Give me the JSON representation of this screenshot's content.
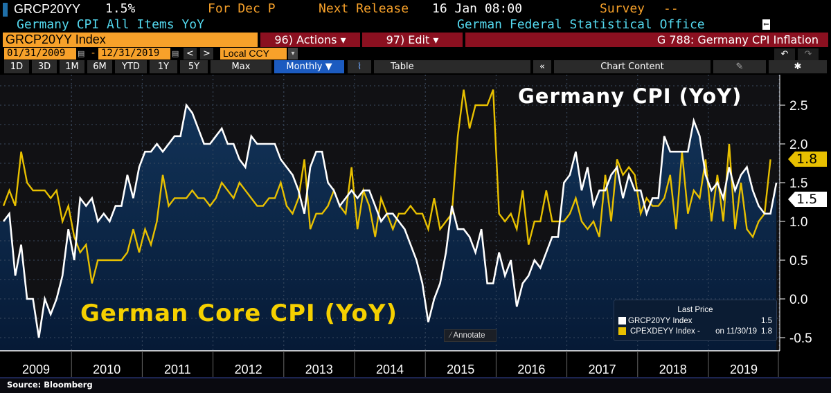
{
  "header": {
    "ticker": "GRCP20YY",
    "value": "1.5%",
    "period": "For Dec P",
    "next_release_label": "Next Release",
    "next_release": "16 Jan 08:00",
    "survey_label": "Survey",
    "survey": "--",
    "description": "Germany CPI All Items YoY",
    "source_org": "German Federal Statistical Office"
  },
  "command": {
    "security": "GRCP20YY Index",
    "actions": "96) Actions ▾",
    "edit": "97) Edit ▾",
    "page": "G 788: Germany CPI Inflation"
  },
  "dates": {
    "start": "01/31/2009",
    "end": "12/31/2019",
    "currency": "Local CCY",
    "prev": "<",
    "next": ">",
    "cal": "▤",
    "dash": "-",
    "dropdown": "▾",
    "undo": "↶",
    "redo": "↷"
  },
  "toolbar": {
    "ranges": [
      "1D",
      "3D",
      "1M",
      "6M",
      "YTD",
      "1Y",
      "5Y",
      "Max"
    ],
    "frequency": "Monthly ▼",
    "table": "Table",
    "collapse": "«",
    "chart_content": "Chart Content",
    "edit_icon": "✎",
    "settings_icon": "✱"
  },
  "annotate": "Annotate",
  "footer": {
    "source": "Source: Bloomberg"
  },
  "colors": {
    "headline": "#ffffff",
    "core": "#e8c000",
    "fill_top": "#123358",
    "fill_bottom": "#061a36",
    "plot_bg": "#111114"
  },
  "chart_data": {
    "type": "line",
    "title": "Germany CPI (YoY)",
    "subtitle": "German Core CPI (YoY)",
    "x_start": "2009-01",
    "frequency": "monthly",
    "xticks": [
      "2009",
      "2010",
      "2011",
      "2012",
      "2013",
      "2014",
      "2015",
      "2016",
      "2017",
      "2018",
      "2019"
    ],
    "ylim": [
      -0.6,
      2.85
    ],
    "yticks": [
      "-0.5",
      "0.0",
      "0.5",
      "1.0",
      "1.5",
      "2.0",
      "2.5"
    ],
    "ytick_values": [
      -0.5,
      0,
      0.5,
      1,
      1.5,
      2,
      2.5
    ],
    "grid": true,
    "legend": {
      "title": "Last Price",
      "position": "bottom-right",
      "entries": [
        {
          "name": "GRCP20YY Index",
          "note": "",
          "last": "1.5"
        },
        {
          "name": "CPEXDEYY Index -",
          "note": "on 11/30/19",
          "last": "1.8"
        }
      ]
    },
    "series": [
      {
        "name": "GRCP20YY Index",
        "last_label": "1.5",
        "values": [
          1.0,
          1.1,
          0.3,
          0.7,
          0.0,
          0.0,
          -0.5,
          0.0,
          -0.2,
          0.0,
          0.3,
          0.9,
          0.5,
          1.3,
          1.2,
          1.3,
          1.0,
          1.1,
          1.0,
          1.2,
          1.2,
          1.6,
          1.3,
          1.7,
          1.9,
          1.9,
          2.0,
          1.9,
          2.0,
          2.1,
          2.1,
          2.5,
          2.4,
          2.2,
          2.0,
          2.0,
          2.1,
          2.2,
          2.0,
          2.0,
          1.8,
          1.7,
          2.1,
          2.0,
          2.0,
          2.0,
          2.0,
          1.8,
          1.7,
          1.6,
          1.4,
          1.1,
          1.7,
          1.9,
          1.9,
          1.5,
          1.4,
          1.2,
          1.3,
          1.4,
          1.3,
          1.4,
          1.4,
          1.2,
          1.0,
          1.1,
          1.1,
          1.0,
          0.9,
          0.7,
          0.5,
          0.2,
          -0.3,
          0.0,
          0.2,
          0.6,
          1.2,
          0.9,
          0.9,
          0.8,
          0.6,
          0.9,
          0.2,
          0.2,
          0.6,
          0.3,
          0.5,
          -0.1,
          0.2,
          0.3,
          0.5,
          0.4,
          0.6,
          0.8,
          0.8,
          1.5,
          1.6,
          1.9,
          1.4,
          1.7,
          1.2,
          1.4,
          1.4,
          1.6,
          1.7,
          1.3,
          1.6,
          1.4,
          1.4,
          1.1,
          1.3,
          1.3,
          2.1,
          1.9,
          1.9,
          1.9,
          1.9,
          2.3,
          2.1,
          1.6,
          1.4,
          1.5,
          1.3,
          1.7,
          1.4,
          1.6,
          1.7,
          1.4,
          1.2,
          1.1,
          1.1,
          1.5
        ]
      },
      {
        "name": "CPEXDEYY Index",
        "last_label": "1.8",
        "values": [
          1.2,
          1.4,
          1.2,
          1.9,
          1.5,
          1.4,
          1.4,
          1.4,
          1.3,
          1.4,
          1.0,
          1.2,
          0.8,
          0.6,
          0.7,
          0.2,
          0.5,
          0.5,
          0.5,
          0.5,
          0.5,
          0.6,
          0.9,
          0.6,
          0.9,
          0.7,
          1.0,
          1.6,
          1.2,
          1.3,
          1.3,
          1.3,
          1.4,
          1.3,
          1.3,
          1.2,
          1.3,
          1.5,
          1.4,
          1.3,
          1.5,
          1.4,
          1.3,
          1.2,
          1.2,
          1.3,
          1.3,
          1.5,
          1.2,
          1.1,
          1.3,
          1.8,
          0.9,
          1.1,
          1.1,
          1.2,
          1.4,
          1.2,
          1.1,
          1.7,
          0.9,
          1.4,
          1.2,
          0.8,
          1.3,
          1.1,
          0.9,
          1.1,
          1.1,
          1.2,
          1.1,
          1.1,
          0.9,
          1.3,
          0.9,
          1.0,
          1.1,
          2.1,
          2.7,
          2.2,
          2.5,
          2.5,
          2.5,
          2.7,
          1.1,
          1.0,
          1.1,
          0.9,
          1.4,
          0.7,
          1.0,
          1.0,
          1.4,
          1.0,
          1.0,
          1.0,
          1.1,
          1.3,
          1.0,
          0.9,
          1.0,
          0.8,
          1.6,
          1.0,
          1.8,
          1.6,
          1.7,
          1.6,
          1.1,
          1.3,
          1.2,
          1.2,
          1.3,
          1.6,
          0.9,
          1.9,
          1.1,
          1.4,
          1.3,
          1.8,
          1.0,
          1.6,
          1.0,
          2.0,
          0.9,
          1.5,
          0.9,
          0.8,
          1.0,
          1.1,
          1.8
        ]
      }
    ]
  }
}
